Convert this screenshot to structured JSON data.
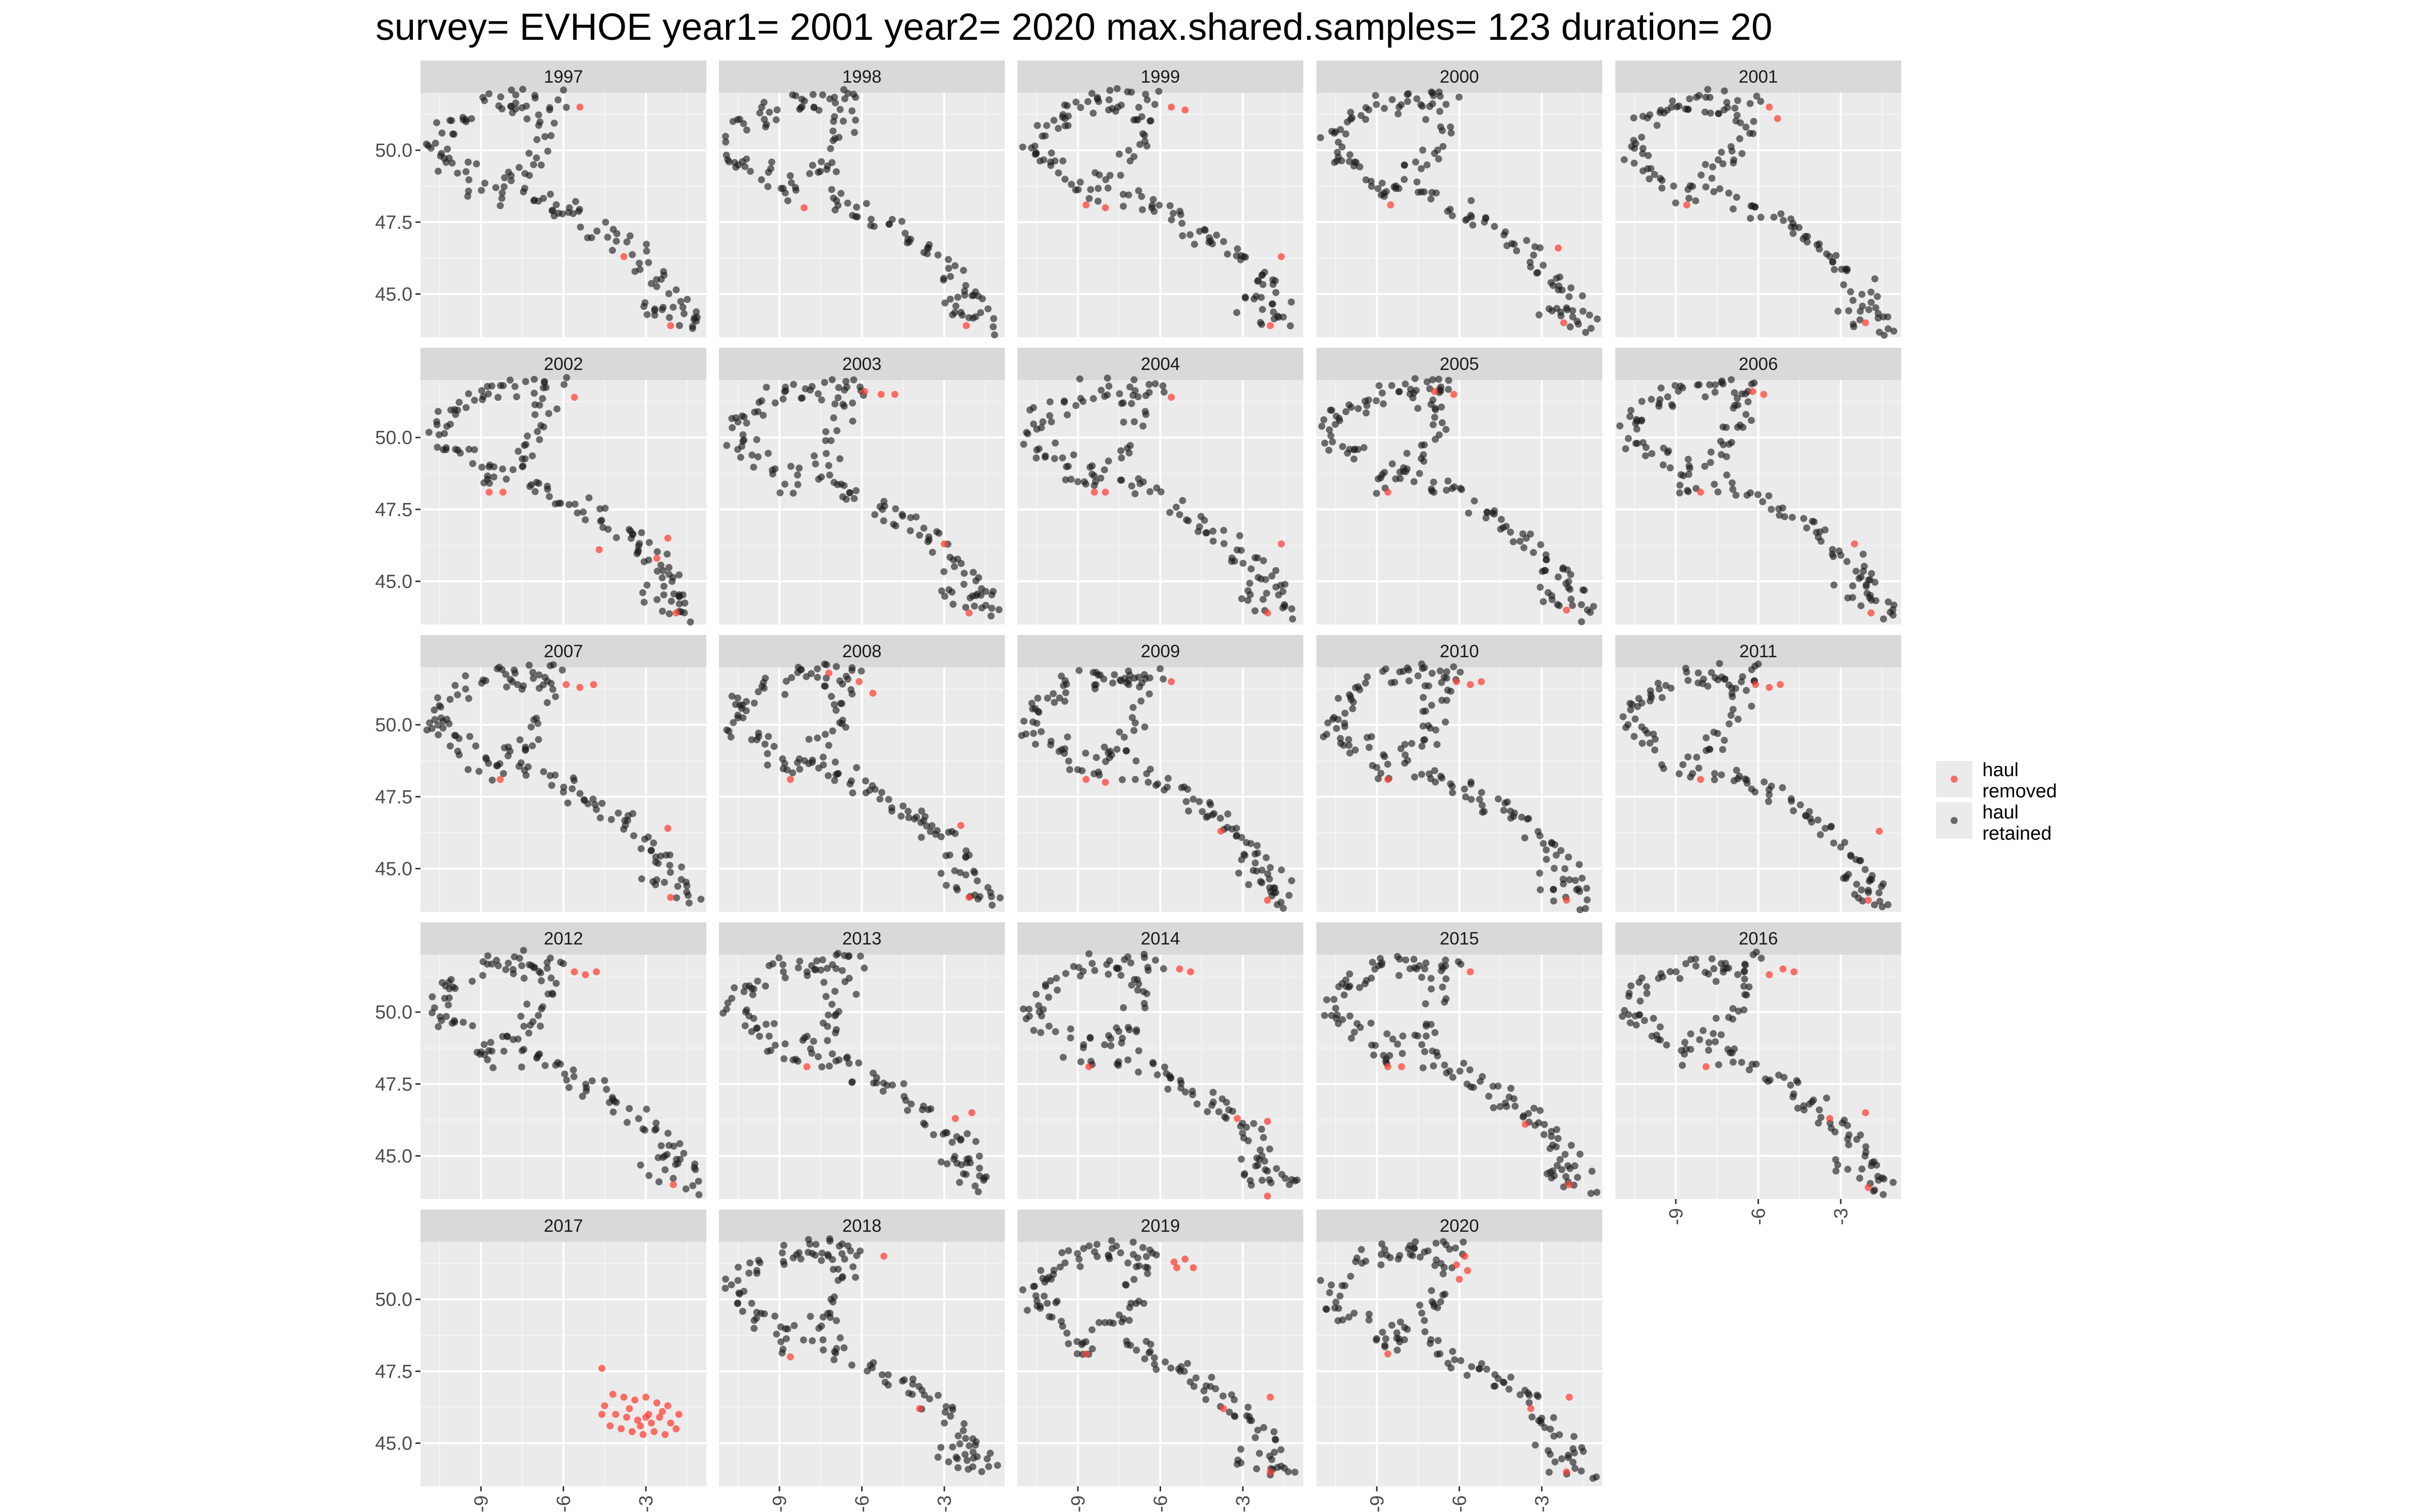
{
  "chart_data": {
    "type": "scatter",
    "title": "survey= EVHOE year1= 2001 year2= 2020 max.shared.samples= 123 duration= 20",
    "facet_by": "year",
    "facets": [
      "1997",
      "1998",
      "1999",
      "2000",
      "2001",
      "2002",
      "2003",
      "2004",
      "2005",
      "2006",
      "2007",
      "2008",
      "2009",
      "2010",
      "2011",
      "2012",
      "2013",
      "2014",
      "2015",
      "2016",
      "2017",
      "2018",
      "2019",
      "2020"
    ],
    "x_ticks": [
      -9,
      -6,
      -3
    ],
    "x_tick_labels": [
      "-9",
      "-6",
      "-3"
    ],
    "y_ticks": [
      45.0,
      47.5,
      50.0
    ],
    "y_tick_labels": [
      "45.0",
      "47.5",
      "50.0"
    ],
    "xlim": [
      -11.2,
      -0.8
    ],
    "ylim": [
      43.5,
      52.0
    ],
    "xlabel": "",
    "ylabel": "",
    "grid": true,
    "legend_position": "right",
    "colors": {
      "removed": "#ff3b30",
      "retained": "#1a1a1a",
      "panel_bg": "#ebebeb",
      "strip_bg": "#d9d9d9",
      "grid": "#ffffff"
    },
    "series": [
      {
        "name": "haul removed",
        "label_lines": [
          "haul",
          "removed"
        ],
        "color": "#ff3b30"
      },
      {
        "name": "haul retained",
        "label_lines": [
          "haul",
          "retained"
        ],
        "color": "#1a1a1a"
      }
    ],
    "retained_track": [
      [
        -10.6,
        50.4
      ],
      [
        -10.3,
        50.8
      ],
      [
        -9.8,
        51.1
      ],
      [
        -9.2,
        51.4
      ],
      [
        -8.6,
        51.7
      ],
      [
        -8.0,
        51.6
      ],
      [
        -7.5,
        51.8
      ],
      [
        -7.1,
        51.3
      ],
      [
        -6.8,
        51.7
      ],
      [
        -6.3,
        51.8
      ],
      [
        -6.6,
        50.9
      ],
      [
        -6.9,
        50.2
      ],
      [
        -7.2,
        49.6
      ],
      [
        -7.6,
        49.2
      ],
      [
        -8.2,
        48.9
      ],
      [
        -8.6,
        48.4
      ],
      [
        -9.1,
        48.7
      ],
      [
        -9.6,
        49.3
      ],
      [
        -10.2,
        49.6
      ],
      [
        -10.6,
        49.9
      ],
      [
        -7.2,
        48.4
      ],
      [
        -6.6,
        48.2
      ],
      [
        -6.0,
        47.9
      ],
      [
        -5.4,
        47.6
      ],
      [
        -4.9,
        47.3
      ],
      [
        -4.4,
        47.0
      ],
      [
        -3.9,
        46.7
      ],
      [
        -3.4,
        46.4
      ],
      [
        -3.0,
        46.0
      ],
      [
        -2.6,
        45.6
      ],
      [
        -2.2,
        45.2
      ],
      [
        -1.9,
        44.8
      ],
      [
        -1.6,
        44.4
      ],
      [
        -1.4,
        43.9
      ],
      [
        -2.3,
        44.2
      ],
      [
        -2.8,
        44.6
      ]
    ],
    "removed_by_year": {
      "1997": [
        [
          -5.4,
          51.5
        ],
        [
          -3.8,
          46.3
        ],
        [
          -2.1,
          43.9
        ]
      ],
      "1998": [
        [
          -8.1,
          48.0
        ],
        [
          -2.2,
          43.9
        ]
      ],
      "1999": [
        [
          -8.7,
          48.1
        ],
        [
          -8.0,
          48.0
        ],
        [
          -5.6,
          51.5
        ],
        [
          -5.1,
          51.4
        ],
        [
          -1.6,
          46.3
        ],
        [
          -2.0,
          43.9
        ]
      ],
      "2000": [
        [
          -8.5,
          48.1
        ],
        [
          -2.4,
          46.6
        ],
        [
          -2.2,
          44.0
        ]
      ],
      "2001": [
        [
          -5.6,
          51.5
        ],
        [
          -5.3,
          51.1
        ],
        [
          -8.6,
          48.1
        ],
        [
          -2.1,
          44.0
        ]
      ],
      "2002": [
        [
          -8.7,
          48.1
        ],
        [
          -8.2,
          48.1
        ],
        [
          -5.6,
          51.4
        ],
        [
          -4.7,
          46.1
        ],
        [
          -2.6,
          45.8
        ],
        [
          -2.2,
          46.5
        ],
        [
          -1.9,
          43.9
        ]
      ],
      "2003": [
        [
          -5.9,
          51.6
        ],
        [
          -5.3,
          51.5
        ],
        [
          -4.8,
          51.5
        ],
        [
          -3.0,
          46.3
        ],
        [
          -2.1,
          43.9
        ]
      ],
      "2004": [
        [
          -8.4,
          48.1
        ],
        [
          -8.0,
          48.1
        ],
        [
          -5.6,
          51.4
        ],
        [
          -1.6,
          46.3
        ],
        [
          -2.1,
          43.9
        ]
      ],
      "2005": [
        [
          -6.9,
          51.6
        ],
        [
          -6.2,
          51.5
        ],
        [
          -8.6,
          48.1
        ],
        [
          -2.1,
          44.0
        ]
      ],
      "2006": [
        [
          -6.2,
          51.6
        ],
        [
          -5.8,
          51.5
        ],
        [
          -8.1,
          48.1
        ],
        [
          -2.5,
          46.3
        ],
        [
          -1.9,
          43.9
        ]
      ],
      "2007": [
        [
          -5.9,
          51.4
        ],
        [
          -5.4,
          51.3
        ],
        [
          -4.9,
          51.4
        ],
        [
          -8.3,
          48.1
        ],
        [
          -2.2,
          46.4
        ],
        [
          -2.1,
          44.0
        ]
      ],
      "2008": [
        [
          -7.2,
          51.8
        ],
        [
          -6.1,
          51.5
        ],
        [
          -5.6,
          51.1
        ],
        [
          -8.6,
          48.1
        ],
        [
          -2.4,
          46.5
        ],
        [
          -2.1,
          44.0
        ]
      ],
      "2009": [
        [
          -5.6,
          51.5
        ],
        [
          -8.7,
          48.1
        ],
        [
          -8.0,
          48.0
        ],
        [
          -3.8,
          46.3
        ],
        [
          -2.1,
          43.9
        ]
      ],
      "2010": [
        [
          -6.1,
          51.5
        ],
        [
          -5.6,
          51.4
        ],
        [
          -5.2,
          51.5
        ],
        [
          -8.6,
          48.1
        ],
        [
          -2.1,
          43.9
        ]
      ],
      "2011": [
        [
          -6.1,
          51.4
        ],
        [
          -5.6,
          51.3
        ],
        [
          -5.2,
          51.4
        ],
        [
          -8.1,
          48.1
        ],
        [
          -1.6,
          46.3
        ],
        [
          -2.0,
          43.9
        ]
      ],
      "2012": [
        [
          -5.6,
          51.4
        ],
        [
          -5.2,
          51.3
        ],
        [
          -4.8,
          51.4
        ],
        [
          -2.0,
          44.0
        ]
      ],
      "2013": [
        [
          -8.0,
          48.1
        ],
        [
          -2.6,
          46.3
        ],
        [
          -2.0,
          46.5
        ]
      ],
      "2014": [
        [
          -5.3,
          51.5
        ],
        [
          -4.9,
          51.4
        ],
        [
          -8.6,
          48.1
        ],
        [
          -3.2,
          46.3
        ],
        [
          -2.1,
          46.2
        ],
        [
          -2.1,
          43.6
        ]
      ],
      "2015": [
        [
          -5.6,
          51.4
        ],
        [
          -8.6,
          48.1
        ],
        [
          -8.1,
          48.1
        ],
        [
          -3.6,
          46.1
        ],
        [
          -2.0,
          44.0
        ]
      ],
      "2016": [
        [
          -5.6,
          51.3
        ],
        [
          -5.1,
          51.5
        ],
        [
          -4.7,
          51.4
        ],
        [
          -7.9,
          48.1
        ],
        [
          -3.4,
          46.3
        ],
        [
          -2.1,
          46.5
        ],
        [
          -2.0,
          43.9
        ]
      ],
      "2017": [
        [
          -4.6,
          47.6
        ],
        [
          -4.2,
          46.7
        ],
        [
          -3.8,
          46.6
        ],
        [
          -3.4,
          46.5
        ],
        [
          -3.0,
          46.6
        ],
        [
          -2.6,
          46.4
        ],
        [
          -2.2,
          46.3
        ],
        [
          -1.8,
          46.0
        ],
        [
          -4.5,
          46.3
        ],
        [
          -4.1,
          46.0
        ],
        [
          -3.7,
          45.9
        ],
        [
          -3.3,
          45.8
        ],
        [
          -2.9,
          46.0
        ],
        [
          -2.5,
          45.9
        ],
        [
          -2.1,
          45.7
        ],
        [
          -4.3,
          45.6
        ],
        [
          -3.9,
          45.5
        ],
        [
          -3.5,
          45.4
        ],
        [
          -3.1,
          45.3
        ],
        [
          -2.7,
          45.4
        ],
        [
          -2.3,
          45.3
        ],
        [
          -1.9,
          45.5
        ],
        [
          -4.6,
          46.0
        ],
        [
          -3.6,
          46.2
        ],
        [
          -2.4,
          46.1
        ],
        [
          -3.2,
          45.6
        ],
        [
          -2.8,
          45.7
        ],
        [
          -3.0,
          45.9
        ]
      ],
      "2018": [
        [
          -8.6,
          48.0
        ],
        [
          -5.2,
          51.5
        ],
        [
          -3.9,
          46.2
        ]
      ],
      "2019": [
        [
          -8.7,
          48.1
        ],
        [
          -5.5,
          51.3
        ],
        [
          -5.1,
          51.4
        ],
        [
          -5.4,
          51.1
        ],
        [
          -4.8,
          51.1
        ],
        [
          -3.7,
          46.2
        ],
        [
          -2.0,
          46.6
        ],
        [
          -2.0,
          44.0
        ]
      ],
      "2020": [
        [
          -8.6,
          48.1
        ],
        [
          -5.8,
          51.5
        ],
        [
          -6.1,
          51.2
        ],
        [
          -5.7,
          51.0
        ],
        [
          -6.0,
          50.7
        ],
        [
          -3.4,
          46.2
        ],
        [
          -2.0,
          46.6
        ],
        [
          -2.1,
          44.0
        ]
      ]
    }
  }
}
